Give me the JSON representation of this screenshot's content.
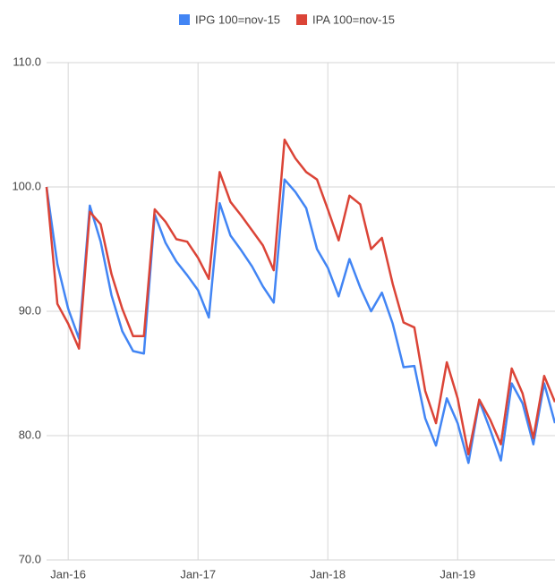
{
  "chart_data": {
    "type": "line",
    "categories": [
      null,
      null,
      "Jan-16",
      null,
      null,
      null,
      null,
      null,
      null,
      null,
      null,
      null,
      null,
      null,
      "Jan-17",
      null,
      null,
      null,
      null,
      null,
      null,
      null,
      null,
      null,
      null,
      null,
      "Jan-18",
      null,
      null,
      null,
      null,
      null,
      null,
      null,
      null,
      null,
      null,
      null,
      "Jan-19",
      null,
      null,
      null,
      null,
      null,
      null,
      null,
      null,
      null
    ],
    "series": [
      {
        "name": "IPG 100=nov-15",
        "color": "#4285f4",
        "values": [
          100,
          93.8,
          90.2,
          87.8,
          98.5,
          95.6,
          91.3,
          88.4,
          86.8,
          86.6,
          97.8,
          95.5,
          94.0,
          92.9,
          91.7,
          89.5,
          98.7,
          96.1,
          94.9,
          93.6,
          92.0,
          90.7,
          100.6,
          99.6,
          98.3,
          95.0,
          93.5,
          91.2,
          94.2,
          91.9,
          90.0,
          91.5,
          89.0,
          85.5,
          85.6,
          81.4,
          79.2,
          83.0,
          81.0,
          77.8,
          82.8,
          80.5,
          78.0,
          84.2,
          82.6,
          79.3,
          84.2,
          81.0
        ]
      },
      {
        "name": "IPA 100=nov-15",
        "color": "#db4437",
        "values": [
          100,
          90.6,
          89.0,
          87.0,
          98.0,
          97.0,
          93.0,
          90.2,
          88.0,
          88.0,
          98.2,
          97.2,
          95.8,
          95.6,
          94.3,
          92.6,
          101.2,
          98.8,
          97.7,
          96.5,
          95.3,
          93.3,
          103.8,
          102.3,
          101.2,
          100.6,
          98.2,
          95.7,
          99.3,
          98.6,
          95.0,
          95.9,
          92.2,
          89.1,
          88.7,
          83.6,
          81.0,
          85.9,
          83.0,
          78.5,
          82.9,
          81.3,
          79.3,
          85.4,
          83.4,
          79.8,
          84.8,
          82.7
        ]
      }
    ],
    "ylim": [
      70,
      110
    ],
    "yticks": [
      {
        "value": 70,
        "label": "70.0"
      },
      {
        "value": 80,
        "label": "80.0"
      },
      {
        "value": 90,
        "label": "90.0"
      },
      {
        "value": 100,
        "label": "100.0"
      },
      {
        "value": 110,
        "label": "110.0"
      }
    ],
    "grid": true,
    "legend": "top"
  }
}
